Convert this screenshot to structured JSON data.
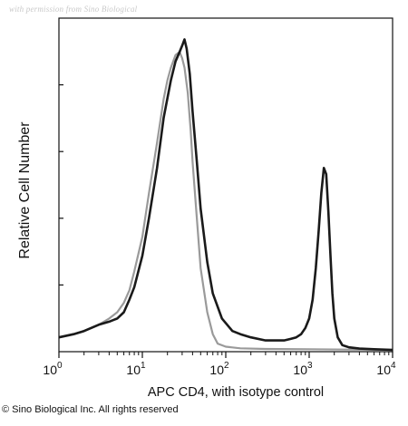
{
  "watermark": "with permission from Sino Biological",
  "copyright": "© Sino Biological Inc. All rights reserved",
  "colors": {
    "sample": "#1a1a1a",
    "isotype": "#9a9a9a",
    "axis": "#111111"
  },
  "chart_data": {
    "type": "line",
    "title": "",
    "xlabel": "APC CD4, with isotype control",
    "ylabel": "Relative Cell Number",
    "xscale": "log",
    "xlim": [
      1,
      10000
    ],
    "ylim": [
      0,
      1
    ],
    "grid": false,
    "x_ticks": [
      {
        "value": 1,
        "base": "10",
        "exp": "0"
      },
      {
        "value": 10,
        "base": "10",
        "exp": "1"
      },
      {
        "value": 100,
        "base": "10",
        "exp": "2"
      },
      {
        "value": 1000,
        "base": "10",
        "exp": "3"
      },
      {
        "value": 10000,
        "base": "10",
        "exp": "4"
      }
    ],
    "series": [
      {
        "role": "sample",
        "color": "#1a1a1a",
        "x": [
          1,
          1.5,
          2,
          3,
          4,
          5,
          6,
          7,
          8,
          10,
          12,
          15,
          18,
          22,
          25,
          28,
          30,
          32,
          34,
          37,
          40,
          45,
          50,
          60,
          70,
          90,
          120,
          150,
          200,
          300,
          400,
          500,
          600,
          700,
          800,
          900,
          1000,
          1100,
          1200,
          1300,
          1400,
          1500,
          1600,
          1700,
          1800,
          1900,
          2000,
          2200,
          2500,
          3000,
          4000,
          6000,
          10000
        ],
        "y": [
          0.04,
          0.05,
          0.06,
          0.08,
          0.09,
          0.1,
          0.12,
          0.16,
          0.2,
          0.3,
          0.42,
          0.58,
          0.74,
          0.86,
          0.92,
          0.95,
          0.97,
          0.99,
          0.96,
          0.88,
          0.76,
          0.6,
          0.45,
          0.28,
          0.18,
          0.1,
          0.06,
          0.05,
          0.04,
          0.03,
          0.03,
          0.03,
          0.035,
          0.04,
          0.05,
          0.07,
          0.1,
          0.16,
          0.26,
          0.38,
          0.5,
          0.58,
          0.56,
          0.44,
          0.3,
          0.18,
          0.1,
          0.04,
          0.015,
          0.008,
          0.004,
          0.002,
          0.0
        ]
      },
      {
        "role": "isotype",
        "color": "#9a9a9a",
        "x": [
          1,
          1.5,
          2,
          3,
          4,
          5,
          6,
          7,
          8,
          10,
          12,
          15,
          18,
          20,
          22,
          25,
          28,
          30,
          32,
          35,
          38,
          40,
          45,
          50,
          60,
          70,
          80,
          100,
          150,
          300,
          1000,
          3000,
          10000
        ],
        "y": [
          0.04,
          0.05,
          0.06,
          0.08,
          0.1,
          0.12,
          0.15,
          0.19,
          0.25,
          0.36,
          0.5,
          0.66,
          0.8,
          0.86,
          0.9,
          0.94,
          0.95,
          0.93,
          0.9,
          0.82,
          0.7,
          0.6,
          0.42,
          0.26,
          0.12,
          0.05,
          0.02,
          0.01,
          0.005,
          0.003,
          0.002,
          0.001,
          0.0
        ]
      }
    ]
  }
}
